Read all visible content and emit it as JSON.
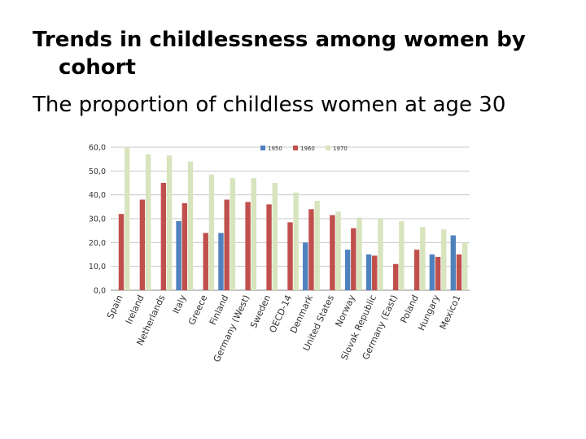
{
  "slide": {
    "title": "Trends in childlessness among women by cohort",
    "subtitle": "The proportion of childless women at age 30"
  },
  "chart_data": {
    "type": "bar",
    "title": "",
    "xlabel": "",
    "ylabel": "",
    "ylim": [
      0,
      60
    ],
    "yticks": [
      "0,0",
      "10,0",
      "20,0",
      "30,0",
      "40,0",
      "50,0",
      "60,0"
    ],
    "grid": true,
    "legend": "top-center",
    "categories": [
      "Spain",
      "Ireland",
      "Netherlands",
      "Italy",
      "Greece",
      "Finland",
      "Germany (West)",
      "Sweden",
      "OECD-14",
      "Denmark",
      "United States",
      "Norway",
      "Slovak Republic",
      "Germany (East)",
      "Poland",
      "Hungary",
      "Mexico1"
    ],
    "series": [
      {
        "name": "1950",
        "color": "#4f81bd",
        "values": [
          null,
          null,
          null,
          29,
          null,
          24,
          null,
          null,
          null,
          20,
          null,
          17,
          15,
          null,
          null,
          15,
          23
        ]
      },
      {
        "name": "1960",
        "color": "#c0504d",
        "values": [
          32,
          38,
          45,
          36.5,
          24,
          38,
          37,
          36,
          28.5,
          34,
          31.5,
          26,
          14.5,
          11,
          17,
          14,
          15
        ]
      },
      {
        "name": "1970",
        "color": "#d7e4bd",
        "values": [
          60,
          57,
          56.5,
          54,
          48.5,
          47,
          47,
          45,
          41,
          37.5,
          33,
          30.5,
          30,
          29,
          26.5,
          25.5,
          20
        ]
      }
    ]
  }
}
